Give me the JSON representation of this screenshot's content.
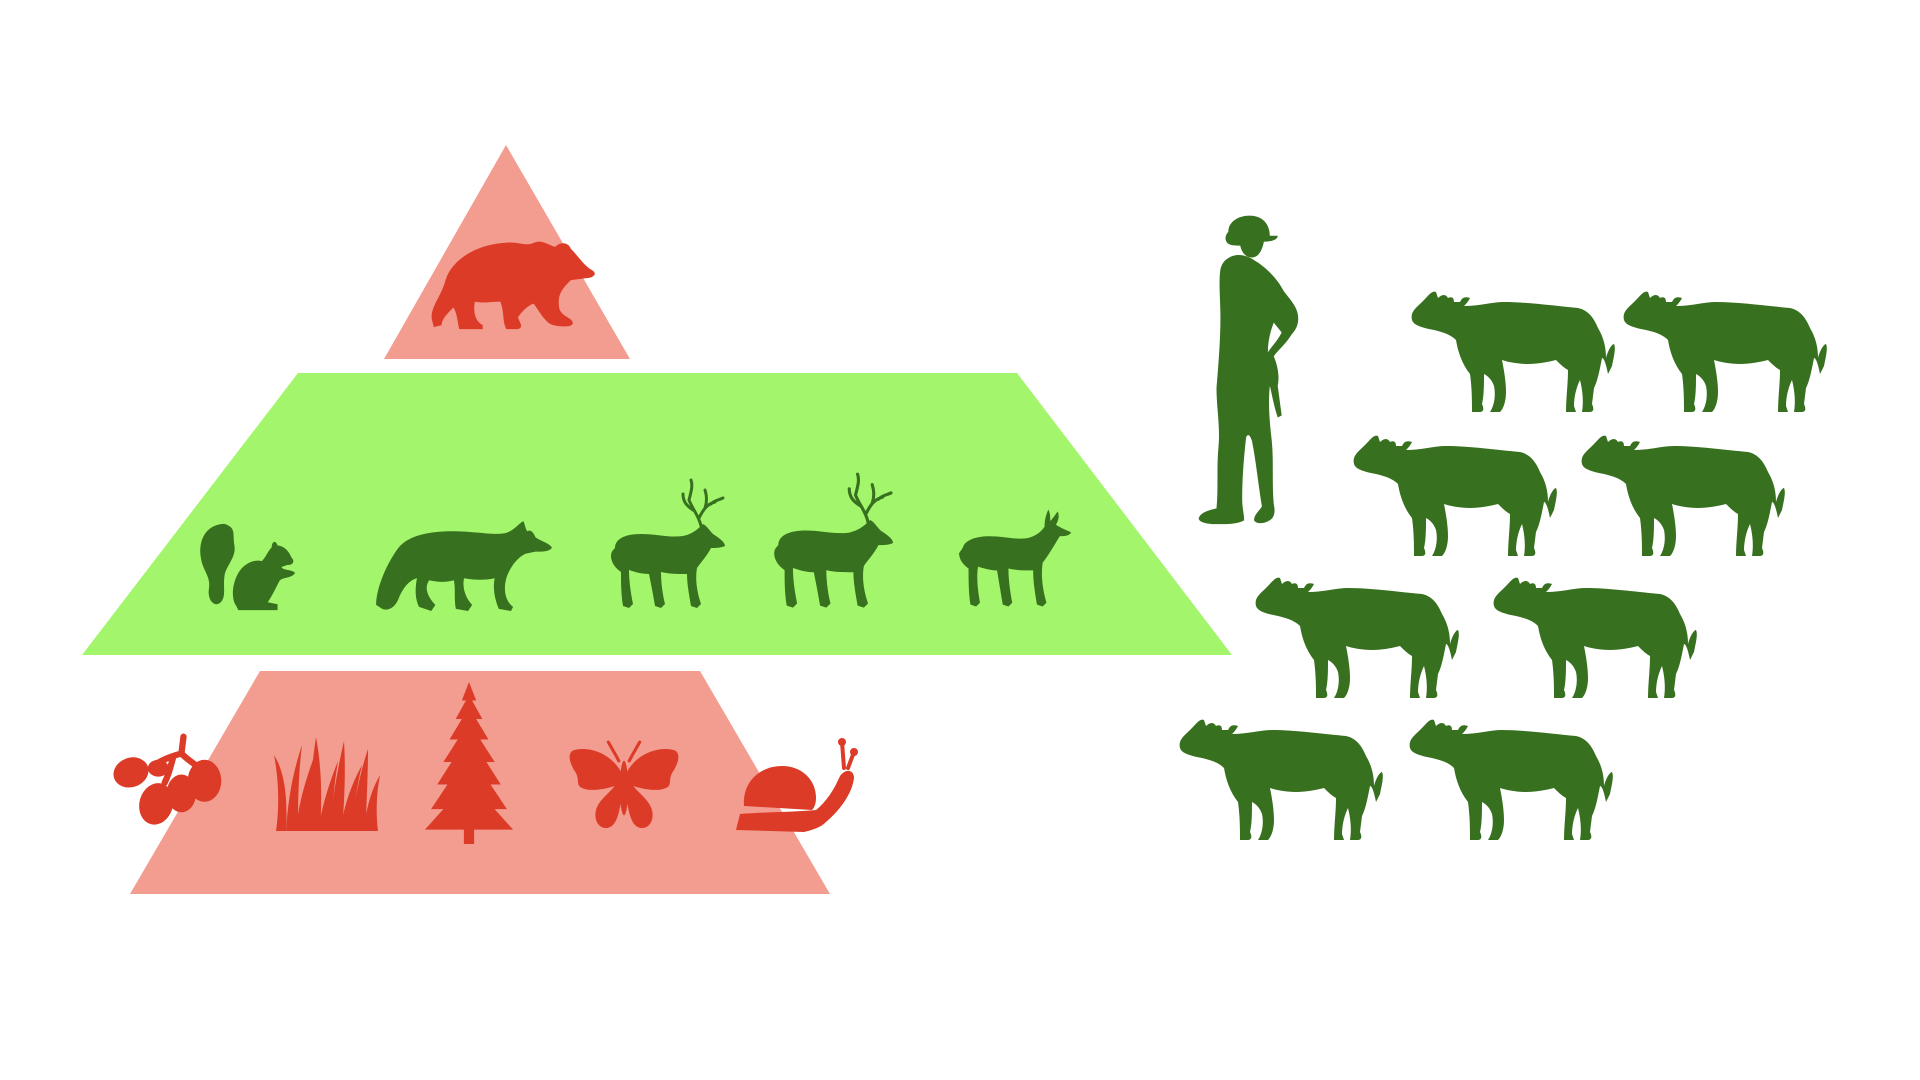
{
  "colors": {
    "background": "#ffffff",
    "top_tier_fill": "#f29d90",
    "middle_tier_fill": "#a3f56b",
    "bottom_tier_fill": "#f29d90",
    "red_silhouette": "#dc3b27",
    "green_silhouette": "#37711f"
  },
  "diagram": {
    "top_tier": {
      "icons": [
        "bear-icon"
      ]
    },
    "middle_tier": {
      "icons": [
        "squirrel-icon",
        "fox-icon",
        "deer-buck-icon",
        "deer-buck-icon",
        "deer-doe-icon"
      ]
    },
    "bottom_tier": {
      "icons": [
        "berries-icon",
        "grass-icon",
        "pine-tree-icon",
        "butterfly-icon",
        "snail-icon"
      ]
    },
    "right_group": {
      "icons": [
        "rancher-icon",
        "cow-icon"
      ],
      "cow_count": 8
    }
  }
}
